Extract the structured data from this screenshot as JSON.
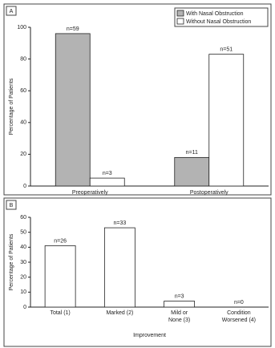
{
  "chart_data": [
    {
      "type": "bar",
      "panel": "A",
      "ylabel": "Percentage of Patients",
      "categories": [
        "Preoperatively",
        "Postoperatively"
      ],
      "series": [
        {
          "name": "With Nasal Obstruction",
          "color": "#b3b3b3",
          "values": [
            96,
            18
          ],
          "annotations": [
            "n=59",
            "n=11"
          ]
        },
        {
          "name": "Without Nasal Obstruction",
          "color": "#ffffff",
          "values": [
            5,
            83
          ],
          "annotations": [
            "n=3",
            "n=51"
          ]
        }
      ],
      "ylim": [
        0,
        100
      ],
      "yticks": [
        0,
        20,
        40,
        60,
        80,
        100
      ],
      "legend": "top-right"
    },
    {
      "type": "bar",
      "panel": "B",
      "ylabel": "Percentage of Patients",
      "xlabel": "Improvement",
      "categories": [
        "Total (1)",
        "Marked (2)",
        "Mild or\nNone (3)",
        "Condition\nWorsened (4)"
      ],
      "values": [
        41,
        53,
        4,
        0
      ],
      "color": "#ffffff",
      "annotations": [
        "n=26",
        "n=33",
        "n=3",
        "n=0"
      ],
      "ylim": [
        0,
        60
      ],
      "yticks": [
        0,
        10,
        20,
        30,
        40,
        50,
        60
      ]
    }
  ]
}
